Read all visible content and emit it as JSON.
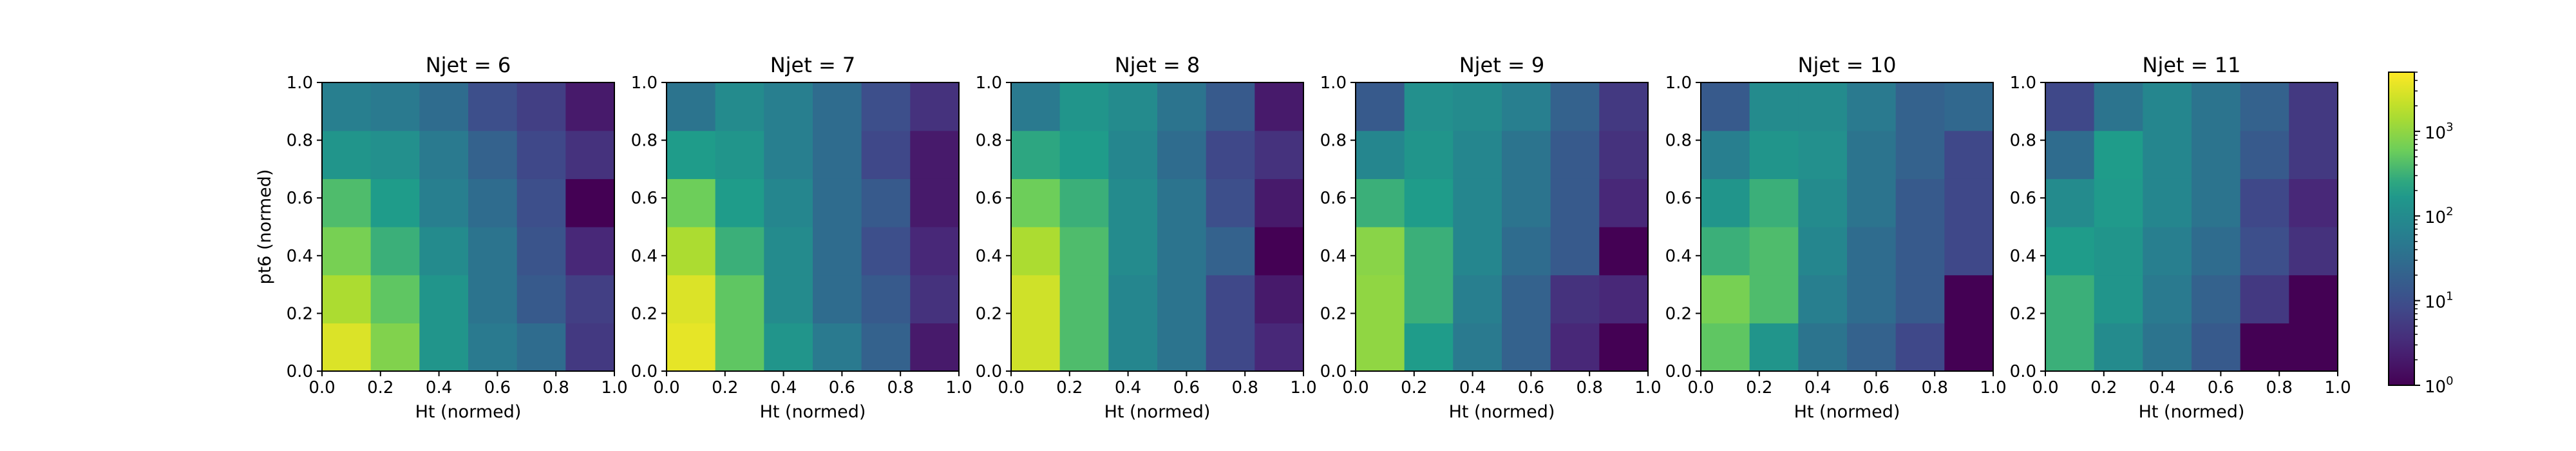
{
  "chart_data": [
    {
      "type": "heatmap",
      "title": "Njet = 6",
      "xlabel": "Ht (normed)",
      "ylabel": "pt6 (normed)",
      "xlim": [
        0.0,
        1.0
      ],
      "ylim": [
        0.0,
        1.0
      ],
      "x_ticks": [
        "0.0",
        "0.2",
        "0.4",
        "0.6",
        "0.8",
        "1.0"
      ],
      "y_ticks": [
        "0.0",
        "0.2",
        "0.4",
        "0.6",
        "0.8",
        "1.0"
      ],
      "bins": [
        6,
        6
      ],
      "values": [
        [
          3000,
          800,
          150,
          50,
          30,
          5
        ],
        [
          1500,
          500,
          150,
          40,
          15,
          6
        ],
        [
          700,
          300,
          100,
          40,
          12,
          3
        ],
        [
          400,
          200,
          60,
          30,
          10,
          1
        ],
        [
          150,
          120,
          50,
          20,
          8,
          4
        ],
        [
          60,
          50,
          30,
          10,
          6,
          2
        ]
      ]
    },
    {
      "type": "heatmap",
      "title": "Njet = 7",
      "xlabel": "Ht (normed)",
      "x_ticks": [
        "0.0",
        "0.2",
        "0.4",
        "0.6",
        "0.8",
        "1.0"
      ],
      "y_ticks": [
        "0.0",
        "0.2",
        "0.4",
        "0.6",
        "0.8",
        "1.0"
      ],
      "bins": [
        6,
        6
      ],
      "values": [
        [
          3500,
          500,
          150,
          50,
          20,
          2
        ],
        [
          3000,
          500,
          100,
          30,
          15,
          4
        ],
        [
          1500,
          300,
          100,
          30,
          10,
          3
        ],
        [
          600,
          200,
          80,
          30,
          15,
          2
        ],
        [
          200,
          150,
          60,
          30,
          8,
          2
        ],
        [
          40,
          100,
          60,
          30,
          10,
          4
        ]
      ]
    },
    {
      "type": "heatmap",
      "title": "Njet = 8",
      "xlabel": "Ht (normed)",
      "x_ticks": [
        "0.0",
        "0.2",
        "0.4",
        "0.6",
        "0.8",
        "1.0"
      ],
      "y_ticks": [
        "0.0",
        "0.2",
        "0.4",
        "0.6",
        "0.8",
        "1.0"
      ],
      "bins": [
        6,
        6
      ],
      "values": [
        [
          2500,
          400,
          80,
          40,
          8,
          3
        ],
        [
          2500,
          400,
          80,
          40,
          8,
          2
        ],
        [
          1500,
          400,
          100,
          40,
          20,
          1
        ],
        [
          600,
          300,
          100,
          40,
          10,
          2
        ],
        [
          250,
          200,
          80,
          30,
          8,
          4
        ],
        [
          50,
          150,
          100,
          40,
          15,
          2
        ]
      ]
    },
    {
      "type": "heatmap",
      "title": "Njet = 9",
      "xlabel": "Ht (normed)",
      "x_ticks": [
        "0.0",
        "0.2",
        "0.4",
        "0.6",
        "0.8",
        "1.0"
      ],
      "y_ticks": [
        "0.0",
        "0.2",
        "0.4",
        "0.6",
        "0.8",
        "1.0"
      ],
      "bins": [
        6,
        6
      ],
      "values": [
        [
          1000,
          200,
          50,
          20,
          3,
          1
        ],
        [
          1000,
          300,
          60,
          20,
          4,
          3
        ],
        [
          900,
          300,
          80,
          30,
          15,
          1
        ],
        [
          300,
          200,
          80,
          40,
          15,
          3
        ],
        [
          80,
          150,
          80,
          40,
          15,
          4
        ],
        [
          15,
          120,
          100,
          60,
          20,
          5
        ]
      ]
    },
    {
      "type": "heatmap",
      "title": "Njet = 10",
      "xlabel": "Ht (normed)",
      "x_ticks": [
        "0.0",
        "0.2",
        "0.4",
        "0.6",
        "0.8",
        "1.0"
      ],
      "y_ticks": [
        "0.0",
        "0.2",
        "0.4",
        "0.6",
        "0.8",
        "1.0"
      ],
      "bins": [
        6,
        6
      ],
      "values": [
        [
          500,
          150,
          40,
          20,
          8,
          1
        ],
        [
          700,
          400,
          60,
          30,
          15,
          1
        ],
        [
          300,
          400,
          80,
          30,
          15,
          8
        ],
        [
          150,
          300,
          100,
          40,
          15,
          8
        ],
        [
          60,
          150,
          120,
          40,
          20,
          8
        ],
        [
          15,
          100,
          100,
          50,
          20,
          25
        ]
      ]
    },
    {
      "type": "heatmap",
      "title": "Njet = 11",
      "xlabel": "Ht (normed)",
      "x_ticks": [
        "0.0",
        "0.2",
        "0.4",
        "0.6",
        "0.8",
        "1.0"
      ],
      "y_ticks": [
        "0.0",
        "0.2",
        "0.4",
        "0.6",
        "0.8",
        "1.0"
      ],
      "bins": [
        6,
        6
      ],
      "values": [
        [
          300,
          100,
          40,
          15,
          1,
          1
        ],
        [
          300,
          150,
          50,
          20,
          5,
          1
        ],
        [
          200,
          150,
          60,
          30,
          10,
          4
        ],
        [
          100,
          180,
          80,
          40,
          8,
          3
        ],
        [
          30,
          200,
          80,
          40,
          15,
          5
        ],
        [
          8,
          40,
          80,
          40,
          20,
          5
        ]
      ]
    }
  ],
  "colorbar": {
    "scale": "log",
    "range": [
      1,
      5000
    ],
    "ticks": [
      {
        "value": 1,
        "base": "10",
        "exp": "0"
      },
      {
        "value": 10,
        "base": "10",
        "exp": "1"
      },
      {
        "value": 100,
        "base": "10",
        "exp": "2"
      },
      {
        "value": 1000,
        "base": "10",
        "exp": "3"
      }
    ],
    "colormap": "viridis"
  }
}
